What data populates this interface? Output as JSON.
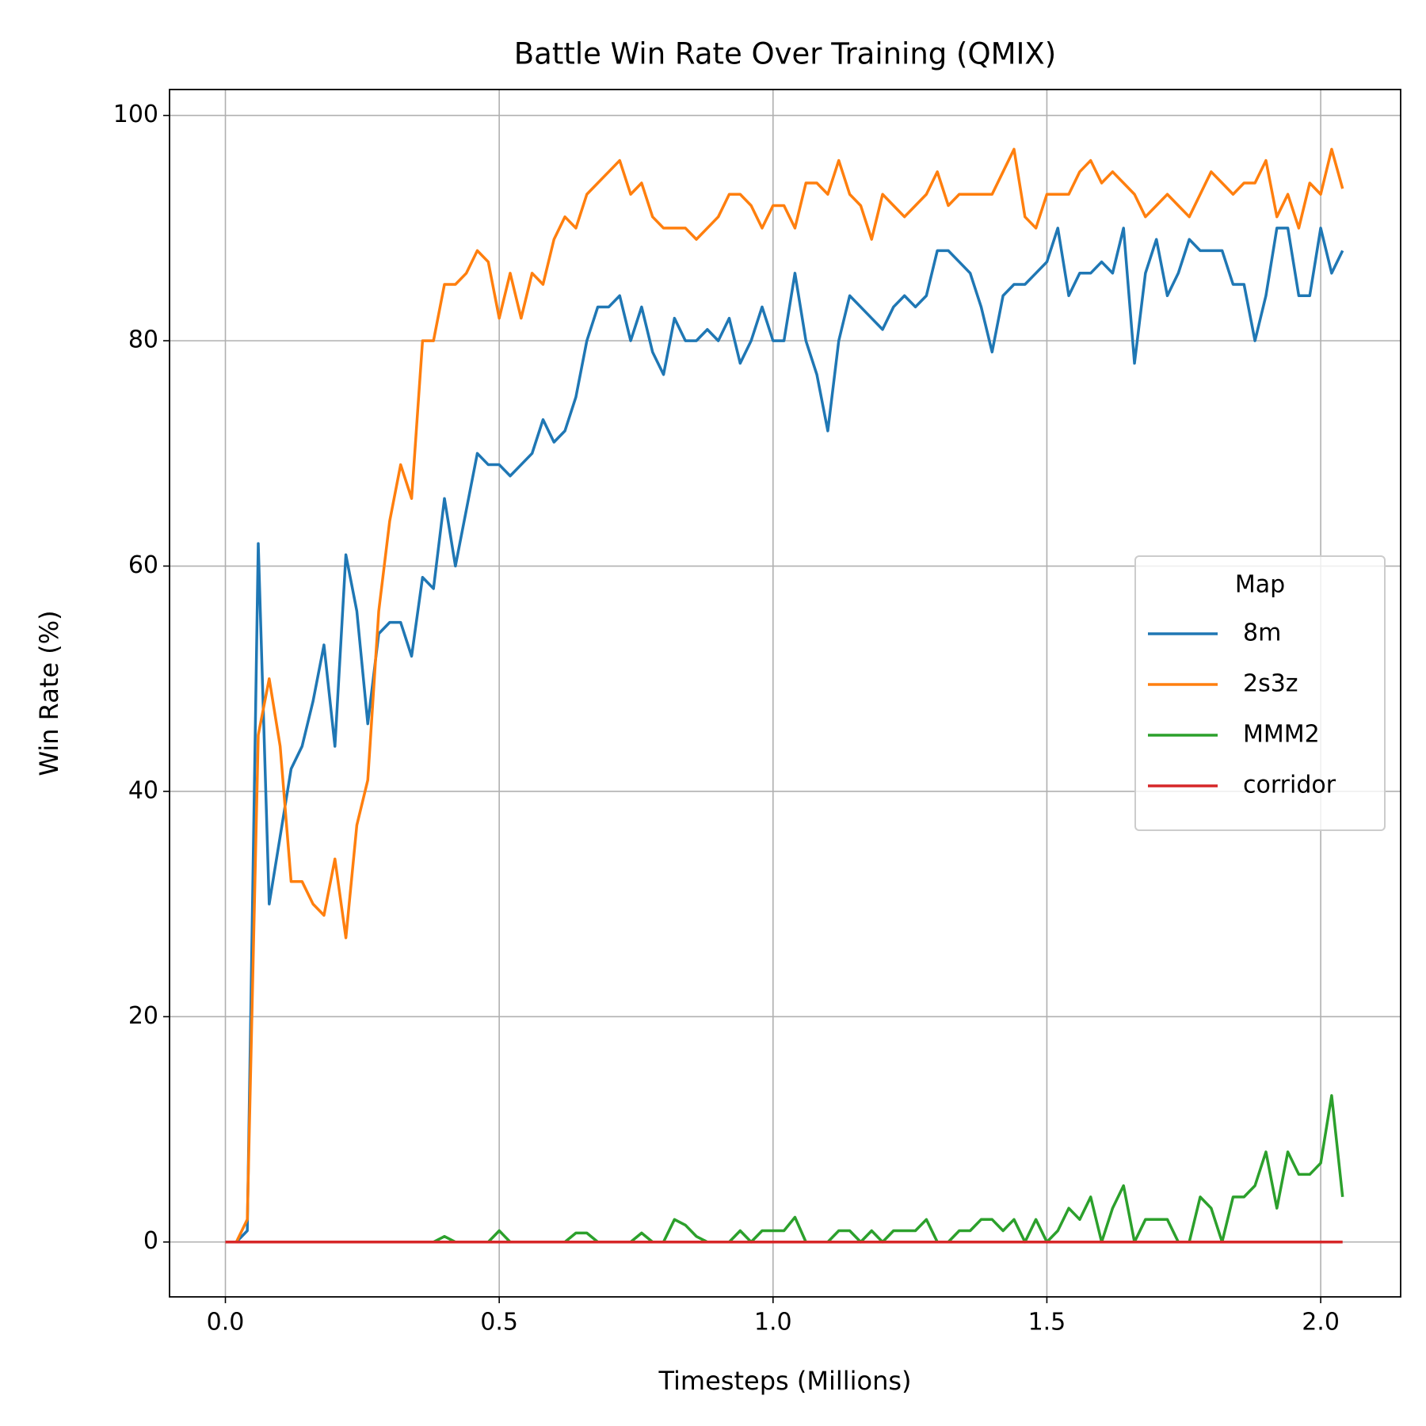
{
  "chart_data": {
    "type": "line",
    "title": "Battle Win Rate Over Training (QMIX)",
    "xlabel": "Timesteps (Millions)",
    "ylabel": "Win Rate (%)",
    "x": [
      0,
      0.02,
      0.04,
      0.06,
      0.08,
      0.1,
      0.12,
      0.14,
      0.16,
      0.18,
      0.2,
      0.22,
      0.24,
      0.26,
      0.28,
      0.3,
      0.32,
      0.34,
      0.36,
      0.38,
      0.4,
      0.42,
      0.44,
      0.46,
      0.48,
      0.5,
      0.52,
      0.54,
      0.56,
      0.58,
      0.6,
      0.62,
      0.64,
      0.66,
      0.68,
      0.7,
      0.72,
      0.74,
      0.76,
      0.78,
      0.8,
      0.82,
      0.84,
      0.86,
      0.88,
      0.9,
      0.92,
      0.94,
      0.96,
      0.98,
      1.0,
      1.02,
      1.04,
      1.06,
      1.08,
      1.1,
      1.12,
      1.14,
      1.16,
      1.18,
      1.2,
      1.22,
      1.24,
      1.26,
      1.28,
      1.3,
      1.32,
      1.34,
      1.36,
      1.38,
      1.4,
      1.42,
      1.44,
      1.46,
      1.48,
      1.5,
      1.52,
      1.54,
      1.56,
      1.58,
      1.6,
      1.62,
      1.64,
      1.66,
      1.68,
      1.7,
      1.72,
      1.74,
      1.76,
      1.78,
      1.8,
      1.82,
      1.84,
      1.86,
      1.88,
      1.9,
      1.92,
      1.94,
      1.96,
      1.98,
      2.0,
      2.02,
      2.04
    ],
    "series": [
      {
        "name": "8m",
        "color": "#1f77b4",
        "values": [
          0,
          0,
          1,
          62,
          30,
          36,
          42,
          44,
          48,
          53,
          44,
          61,
          56,
          46,
          54,
          55,
          55,
          52,
          59,
          58,
          66,
          60,
          65,
          70,
          69,
          69,
          68,
          69,
          70,
          73,
          71,
          72,
          75,
          80,
          83,
          83,
          84,
          80,
          83,
          79,
          77,
          82,
          80,
          80,
          81,
          80,
          82,
          78,
          80,
          83,
          80,
          80,
          86,
          80,
          77,
          72,
          80,
          84,
          83,
          82,
          81,
          83,
          84,
          83,
          84,
          88,
          88,
          87,
          86,
          83,
          79,
          84,
          85,
          85,
          86,
          87,
          90,
          84,
          86,
          86,
          87,
          86,
          90,
          78,
          86,
          89,
          84,
          86,
          89,
          88,
          88,
          88,
          85,
          85,
          80,
          84,
          90,
          90,
          84,
          84,
          90,
          86,
          88
        ]
      },
      {
        "name": "2s3z",
        "color": "#ff7f0e",
        "values": [
          0,
          0,
          2,
          45,
          50,
          44,
          32,
          32,
          30,
          29,
          34,
          27,
          37,
          41,
          56,
          64,
          69,
          66,
          80,
          80,
          85,
          85,
          86,
          88,
          87,
          82,
          86,
          82,
          86,
          85,
          89,
          91,
          90,
          93,
          94,
          95,
          96,
          93,
          94,
          91,
          90,
          90,
          90,
          89,
          90,
          91,
          93,
          93,
          92,
          90,
          92,
          92,
          90,
          94,
          94,
          93,
          96,
          93,
          92,
          89,
          93,
          92,
          91,
          92,
          93,
          95,
          92,
          93,
          93,
          93,
          93,
          95,
          97,
          91,
          90,
          93,
          93,
          93,
          95,
          96,
          94,
          95,
          94,
          93,
          91,
          92,
          93,
          92,
          91,
          93,
          95,
          94,
          93,
          94,
          94,
          96,
          91,
          93,
          90,
          94,
          93,
          97,
          93.5
        ]
      },
      {
        "name": "MMM2",
        "color": "#2ca02c",
        "values": [
          0,
          0,
          0,
          0,
          0,
          0,
          0,
          0,
          0,
          0,
          0,
          0,
          0,
          0,
          0,
          0,
          0,
          0,
          0,
          0,
          0.5,
          0,
          0,
          0,
          0,
          1,
          0,
          0,
          0,
          0,
          0,
          0,
          0.8,
          0.8,
          0,
          0,
          0,
          0,
          0.8,
          0,
          0,
          2,
          1.5,
          0.5,
          0,
          0,
          0,
          1,
          0,
          1,
          1,
          1,
          2.2,
          0,
          0,
          0,
          1,
          1,
          0,
          1,
          0,
          1,
          1,
          1,
          2,
          0,
          0,
          1,
          1,
          2,
          2,
          1,
          2,
          0,
          2,
          0,
          1,
          3,
          2,
          4,
          0,
          3,
          5,
          0,
          2,
          2,
          2,
          0,
          0,
          4,
          3,
          0,
          4,
          4,
          5,
          8,
          3,
          8,
          6,
          6,
          7,
          13,
          4
        ]
      },
      {
        "name": "corridor",
        "color": "#d62728",
        "values": [
          0,
          0,
          0,
          0,
          0,
          0,
          0,
          0,
          0,
          0,
          0,
          0,
          0,
          0,
          0,
          0,
          0,
          0,
          0,
          0,
          0,
          0,
          0,
          0,
          0,
          0,
          0,
          0,
          0,
          0,
          0,
          0,
          0,
          0,
          0,
          0,
          0,
          0,
          0,
          0,
          0,
          0,
          0,
          0,
          0,
          0,
          0,
          0,
          0,
          0,
          0,
          0,
          0,
          0,
          0,
          0,
          0,
          0,
          0,
          0,
          0,
          0,
          0,
          0,
          0,
          0,
          0,
          0,
          0,
          0,
          0,
          0,
          0,
          0,
          0,
          0,
          0,
          0,
          0,
          0,
          0,
          0,
          0,
          0,
          0,
          0,
          0,
          0,
          0,
          0,
          0,
          0,
          0,
          0,
          0,
          0,
          0,
          0,
          0,
          0,
          0,
          0,
          0
        ]
      }
    ],
    "xlim": [
      -0.102,
      2.146
    ],
    "ylim": [
      -4.87,
      102.3
    ],
    "xticks": [
      {
        "value": 0,
        "label": "0.0"
      },
      0.5,
      {
        "value": 1,
        "label": "1.0"
      },
      1.5,
      {
        "value": 2,
        "label": "2.0"
      }
    ],
    "yticks": [
      0,
      20,
      40,
      60,
      80,
      100
    ],
    "grid": true,
    "legend": {
      "title": "Map",
      "position": "center right"
    }
  }
}
